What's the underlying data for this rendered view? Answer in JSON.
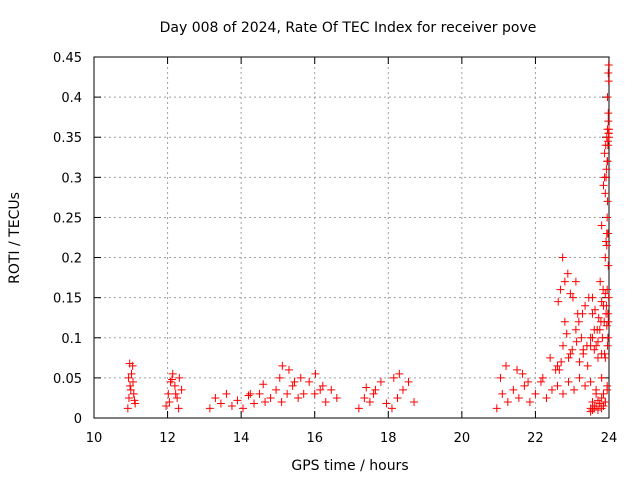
{
  "chart_data": {
    "type": "scatter",
    "title": "Day 008 of 2024, Rate Of TEC Index for receiver pove",
    "xlabel": "GPS time / hours",
    "ylabel": "ROTI / TECUs",
    "xlim": [
      10,
      24
    ],
    "ylim": [
      0,
      0.45
    ],
    "x_ticks": [
      10,
      12,
      14,
      16,
      18,
      20,
      22,
      24
    ],
    "y_ticks": [
      0,
      0.05,
      0.1,
      0.15,
      0.2,
      0.25,
      0.3,
      0.35,
      0.4,
      0.45
    ],
    "grid": true,
    "marker": "+",
    "series": [
      {
        "name": "ROTI",
        "color": "#ff0000",
        "x": [
          10.92,
          10.95,
          10.98,
          11.02,
          11.05,
          11.08,
          11.12,
          10.94,
          11.0,
          11.06,
          11.1,
          10.97,
          11.96,
          12.02,
          12.08,
          12.14,
          12.2,
          12.26,
          12.32,
          12.38,
          12.05,
          12.12,
          12.22,
          12.3,
          13.15,
          13.3,
          13.45,
          13.6,
          13.75,
          13.9,
          14.05,
          14.2,
          14.35,
          14.5,
          14.65,
          14.8,
          14.95,
          15.1,
          15.25,
          15.4,
          15.55,
          15.7,
          15.85,
          16.0,
          16.15,
          16.3,
          16.45,
          16.6,
          15.05,
          15.12,
          15.3,
          15.45,
          15.62,
          16.02,
          16.22,
          14.6,
          14.25,
          17.2,
          17.35,
          17.5,
          17.65,
          17.8,
          17.95,
          17.6,
          17.4,
          18.1,
          18.25,
          18.4,
          18.55,
          18.7,
          18.3,
          18.15,
          20.95,
          21.1,
          21.25,
          21.4,
          21.55,
          21.7,
          21.85,
          22.0,
          22.15,
          22.3,
          22.45,
          22.6,
          22.75,
          22.9,
          23.05,
          23.2,
          23.35,
          23.5,
          23.65,
          23.8,
          23.95,
          21.05,
          21.2,
          21.5,
          21.65,
          21.8,
          22.2,
          22.4,
          22.55,
          22.6,
          22.65,
          22.7,
          22.75,
          22.8,
          22.85,
          22.95,
          23.1,
          23.15,
          23.25,
          23.3,
          23.4,
          23.5,
          22.62,
          22.68,
          22.74,
          22.8,
          22.88,
          22.95,
          23.02,
          23.1,
          23.18,
          23.28,
          23.35,
          23.45,
          23.55,
          22.9,
          23.0,
          23.12,
          23.2,
          23.3,
          23.42,
          23.5,
          23.6,
          23.7,
          23.8,
          23.55,
          23.6,
          23.65,
          23.7,
          23.75,
          23.78,
          23.82,
          23.85,
          23.88,
          23.9,
          23.92,
          23.94,
          23.96,
          23.97,
          23.55,
          23.62,
          23.68,
          23.72,
          23.76,
          23.8,
          23.84,
          23.87,
          23.9,
          23.93,
          23.95,
          23.97,
          23.98,
          23.99,
          23.8,
          23.85,
          23.88,
          23.9,
          23.92,
          23.94,
          23.95,
          23.96,
          23.97,
          23.98,
          23.88,
          23.91,
          23.94,
          23.96,
          23.98,
          23.99,
          23.97,
          23.95,
          23.93,
          23.9,
          23.92,
          23.94,
          23.96,
          23.97,
          23.98,
          23.99,
          23.98,
          23.96,
          23.99,
          24.0,
          23.99,
          24.0,
          23.5,
          23.55,
          23.6,
          23.65,
          23.7,
          23.75,
          23.8,
          23.85,
          23.9,
          23.95,
          23.5,
          23.55,
          23.6,
          23.65,
          23.7,
          23.75,
          23.8,
          23.85,
          23.9
        ],
        "y": [
          0.012,
          0.025,
          0.04,
          0.055,
          0.065,
          0.03,
          0.018,
          0.05,
          0.035,
          0.045,
          0.022,
          0.068,
          0.015,
          0.03,
          0.045,
          0.055,
          0.04,
          0.025,
          0.05,
          0.035,
          0.02,
          0.048,
          0.03,
          0.012,
          0.012,
          0.025,
          0.018,
          0.03,
          0.015,
          0.022,
          0.012,
          0.028,
          0.018,
          0.03,
          0.02,
          0.025,
          0.035,
          0.02,
          0.03,
          0.04,
          0.025,
          0.03,
          0.045,
          0.03,
          0.035,
          0.02,
          0.035,
          0.025,
          0.05,
          0.065,
          0.06,
          0.045,
          0.05,
          0.055,
          0.04,
          0.042,
          0.03,
          0.012,
          0.025,
          0.02,
          0.035,
          0.045,
          0.018,
          0.03,
          0.038,
          0.012,
          0.025,
          0.035,
          0.045,
          0.02,
          0.055,
          0.05,
          0.012,
          0.03,
          0.02,
          0.035,
          0.025,
          0.04,
          0.02,
          0.03,
          0.045,
          0.025,
          0.035,
          0.04,
          0.03,
          0.045,
          0.035,
          0.05,
          0.04,
          0.045,
          0.035,
          0.05,
          0.04,
          0.05,
          0.065,
          0.06,
          0.055,
          0.045,
          0.05,
          0.075,
          0.06,
          0.065,
          0.06,
          0.07,
          0.09,
          0.12,
          0.105,
          0.08,
          0.11,
          0.13,
          0.1,
          0.085,
          0.09,
          0.1,
          0.145,
          0.16,
          0.2,
          0.17,
          0.18,
          0.155,
          0.15,
          0.17,
          0.12,
          0.13,
          0.14,
          0.15,
          0.13,
          0.075,
          0.085,
          0.095,
          0.07,
          0.08,
          0.065,
          0.09,
          0.085,
          0.075,
          0.08,
          0.1,
          0.11,
          0.09,
          0.095,
          0.11,
          0.12,
          0.1,
          0.14,
          0.08,
          0.075,
          0.13,
          0.115,
          0.09,
          0.1,
          0.15,
          0.135,
          0.11,
          0.125,
          0.17,
          0.145,
          0.16,
          0.12,
          0.155,
          0.14,
          0.16,
          0.13,
          0.12,
          0.15,
          0.24,
          0.29,
          0.3,
          0.2,
          0.22,
          0.215,
          0.25,
          0.27,
          0.23,
          0.19,
          0.33,
          0.34,
          0.35,
          0.36,
          0.37,
          0.355,
          0.345,
          0.32,
          0.31,
          0.28,
          0.3,
          0.23,
          0.32,
          0.34,
          0.38,
          0.44,
          0.43,
          0.4,
          0.42,
          0.35,
          0.355,
          0.36,
          0.012,
          0.02,
          0.015,
          0.03,
          0.022,
          0.018,
          0.025,
          0.03,
          0.02,
          0.035,
          0.008,
          0.01,
          0.012,
          0.015,
          0.01,
          0.018,
          0.012,
          0.015,
          0.02
        ]
      }
    ]
  }
}
